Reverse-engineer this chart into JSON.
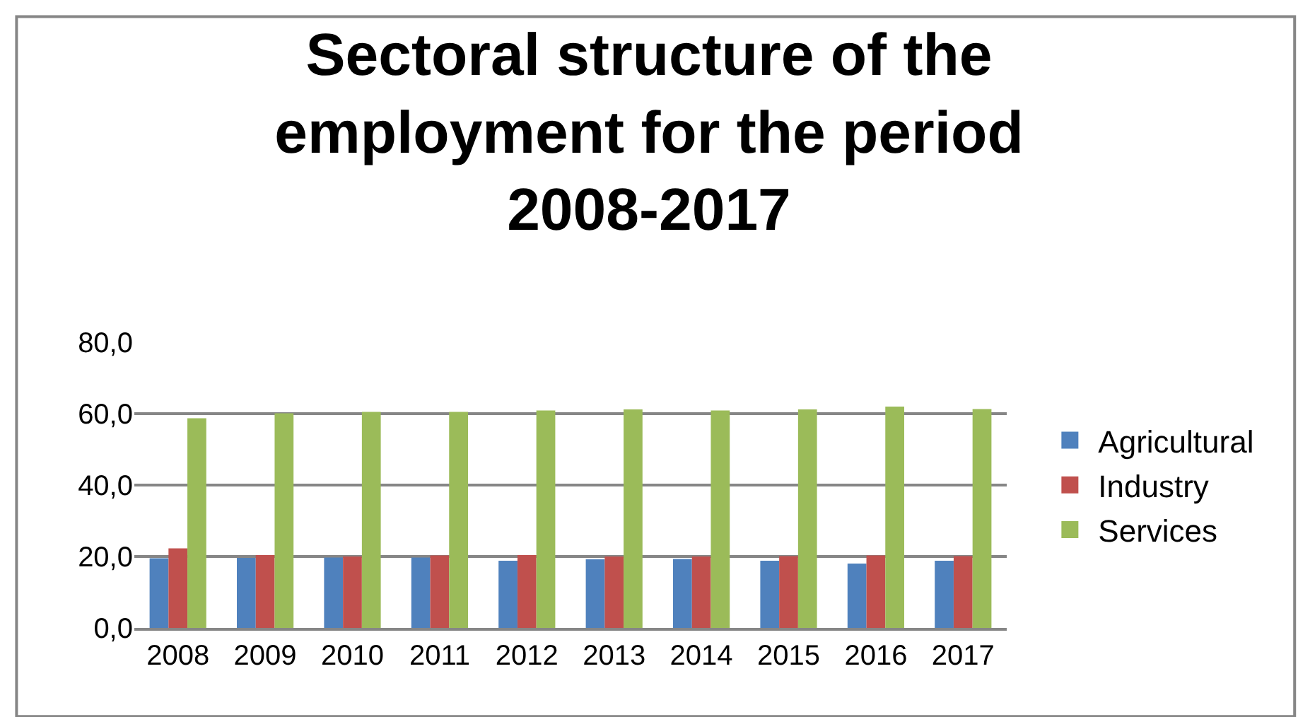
{
  "chart_data": {
    "type": "bar",
    "title": "Sectoral structure of the employment for the period 2008-2017",
    "categories": [
      "2008",
      "2009",
      "2010",
      "2011",
      "2012",
      "2013",
      "2014",
      "2015",
      "2016",
      "2017"
    ],
    "series": [
      {
        "name": "Agricultural",
        "color": "#4f81bd",
        "values": [
          19.5,
          19.6,
          19.7,
          19.7,
          18.8,
          19.2,
          19.3,
          18.8,
          18.0,
          18.8
        ]
      },
      {
        "name": "Industry",
        "color": "#c0504d",
        "values": [
          22.3,
          20.4,
          20.0,
          20.3,
          20.4,
          20.0,
          20.0,
          20.1,
          20.3,
          20.1
        ]
      },
      {
        "name": "Services",
        "color": "#9bbb59",
        "values": [
          58.7,
          60.1,
          60.5,
          60.5,
          60.9,
          61.2,
          60.9,
          61.2,
          62.0,
          61.3
        ]
      }
    ],
    "ylim": [
      0,
      80
    ],
    "yticks": [
      {
        "value": 0,
        "label": "0,0"
      },
      {
        "value": 20,
        "label": "20,0"
      },
      {
        "value": 40,
        "label": "40,0"
      },
      {
        "value": 60,
        "label": "60,0"
      },
      {
        "value": 80,
        "label": "80,0"
      }
    ],
    "grid": "y",
    "legend": "right"
  }
}
